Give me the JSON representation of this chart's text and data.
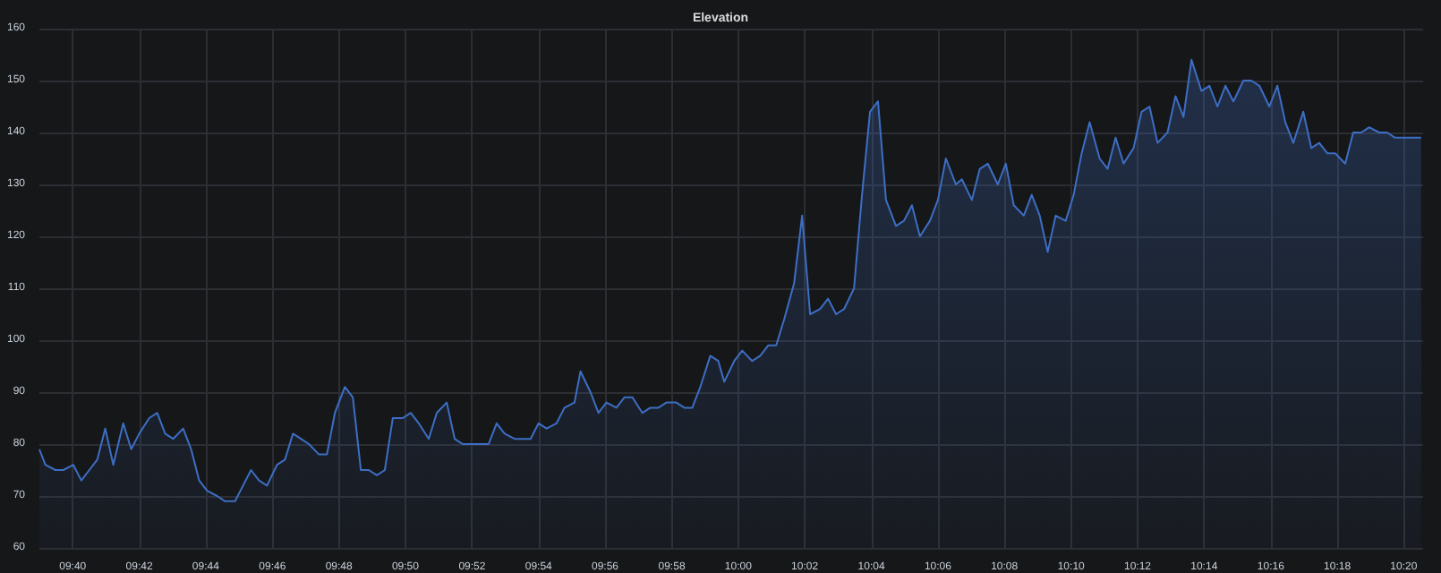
{
  "chart_data": {
    "type": "area",
    "title": "Elevation",
    "x": [
      9.65,
      9.653,
      9.658,
      9.662,
      9.667,
      9.671,
      9.675,
      9.679,
      9.683,
      9.687,
      9.692,
      9.696,
      9.7,
      9.705,
      9.709,
      9.713,
      9.717,
      9.722,
      9.726,
      9.73,
      9.734,
      9.739,
      9.743,
      9.748,
      9.752,
      9.756,
      9.76,
      9.764,
      9.769,
      9.773,
      9.777,
      9.781,
      9.785,
      9.79,
      9.794,
      9.798,
      9.803,
      9.807,
      9.811,
      9.815,
      9.819,
      9.823,
      9.827,
      9.832,
      9.836,
      9.84,
      9.845,
      9.849,
      9.854,
      9.858,
      9.862,
      9.875,
      9.879,
      9.883,
      9.888,
      9.896,
      9.9,
      9.904,
      9.909,
      9.913,
      9.918,
      9.921,
      9.926,
      9.93,
      9.934,
      9.939,
      9.943,
      9.947,
      9.952,
      9.956,
      9.96,
      9.964,
      9.969,
      9.973,
      9.977,
      9.981,
      9.986,
      9.99,
      9.993,
      9.998,
      10.002,
      10.007,
      10.011,
      10.015,
      10.019,
      10.023,
      10.028,
      10.032,
      10.036,
      10.041,
      10.045,
      10.049,
      10.053,
      10.058,
      10.062,
      10.066,
      10.07,
      10.074,
      10.079,
      10.083,
      10.087,
      10.091,
      10.096,
      10.1,
      10.104,
      10.109,
      10.112,
      10.117,
      10.121,
      10.125,
      10.13,
      10.134,
      10.138,
      10.143,
      10.147,
      10.151,
      10.155,
      10.159,
      10.164,
      10.168,
      10.172,
      10.176,
      10.181,
      10.185,
      10.189,
      10.193,
      10.198,
      10.202,
      10.206,
      10.21,
      10.215,
      10.219,
      10.223,
      10.227,
      10.232,
      10.236,
      10.24,
      10.244,
      10.248,
      10.253,
      10.257,
      10.261,
      10.266,
      10.27,
      10.274,
      10.278,
      10.283,
      10.287,
      10.291,
      10.295,
      10.299,
      10.304,
      10.308,
      10.312,
      10.316,
      10.321,
      10.325,
      10.329,
      10.333,
      10.342
    ],
    "series": [
      {
        "color": "#3d6ec4",
        "values": [
          79,
          76,
          75,
          75,
          76,
          73,
          75,
          77,
          83,
          76,
          84,
          79,
          82,
          85,
          86,
          82,
          81,
          83,
          79,
          73,
          71,
          70,
          69,
          69,
          72,
          75,
          73,
          72,
          76,
          77,
          82,
          81,
          80,
          78,
          78,
          86,
          91,
          89,
          75,
          75,
          74,
          75,
          85,
          85,
          86,
          84,
          81,
          86,
          88,
          81,
          80,
          80,
          84,
          82,
          81,
          81,
          84,
          83,
          84,
          87,
          88,
          94,
          90,
          86,
          88,
          87,
          89,
          89,
          86,
          87,
          87,
          88,
          88,
          87,
          87,
          91,
          97,
          96,
          92,
          96,
          98,
          96,
          97,
          99,
          99,
          104,
          111,
          124,
          105,
          106,
          108,
          105,
          106,
          110,
          128,
          144,
          146,
          127,
          122,
          123,
          126,
          120,
          123,
          127,
          135,
          130,
          131,
          127,
          133,
          134,
          130,
          134,
          126,
          124,
          128,
          124,
          117,
          124,
          123,
          128,
          136,
          142,
          135,
          133,
          139,
          134,
          137,
          144,
          145,
          138,
          140,
          147,
          143,
          154,
          148,
          149,
          145,
          149,
          146,
          150,
          150,
          149,
          145,
          149,
          142,
          138,
          144,
          137,
          138,
          136,
          136,
          134,
          140,
          140,
          141,
          140,
          140,
          139,
          139,
          139
        ]
      }
    ],
    "xlim": [
      9.65,
      10.343
    ],
    "xticks": [
      {
        "value": 9.6667,
        "label": "09:40"
      },
      {
        "value": 9.7,
        "label": "09:42"
      },
      {
        "value": 9.7333,
        "label": "09:44"
      },
      {
        "value": 9.7667,
        "label": "09:46"
      },
      {
        "value": 9.8,
        "label": "09:48"
      },
      {
        "value": 9.8333,
        "label": "09:50"
      },
      {
        "value": 9.8667,
        "label": "09:52"
      },
      {
        "value": 9.9,
        "label": "09:54"
      },
      {
        "value": 9.9333,
        "label": "09:56"
      },
      {
        "value": 9.9667,
        "label": "09:58"
      },
      {
        "value": 10,
        "label": "10:00"
      },
      {
        "value": 10.0333,
        "label": "10:02"
      },
      {
        "value": 10.0667,
        "label": "10:04"
      },
      {
        "value": 10.1,
        "label": "10:06"
      },
      {
        "value": 10.1333,
        "label": "10:08"
      },
      {
        "value": 10.1667,
        "label": "10:10"
      },
      {
        "value": 10.2,
        "label": "10:12"
      },
      {
        "value": 10.2333,
        "label": "10:14"
      },
      {
        "value": 10.2667,
        "label": "10:16"
      },
      {
        "value": 10.3,
        "label": "10:18"
      },
      {
        "value": 10.3333,
        "label": "10:20"
      }
    ],
    "ylim": [
      60,
      160
    ],
    "yticks": [
      60,
      70,
      80,
      90,
      100,
      110,
      120,
      130,
      140,
      150,
      160
    ],
    "grid": true,
    "marker": "none"
  }
}
